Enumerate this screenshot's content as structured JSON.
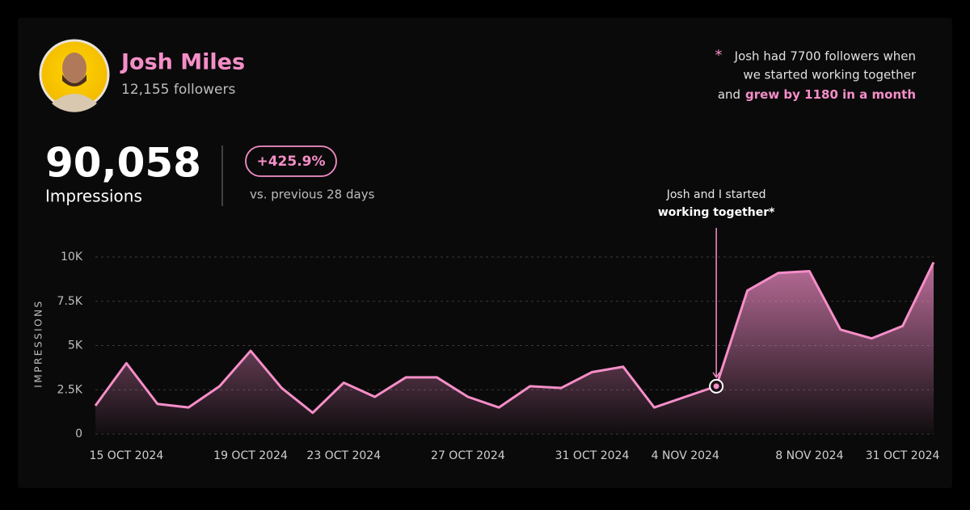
{
  "header": {
    "name": "Josh Miles",
    "followers": "12,155 followers"
  },
  "summary": {
    "total": "90,058",
    "label": "Impressions",
    "change": "+425.9%",
    "comparison": "vs. previous 28 days"
  },
  "note": {
    "marker": "*",
    "line1": "Josh had 7700 followers when",
    "line2": "we started working together",
    "prefix": "and",
    "highlight": "grew by 1180 in a month"
  },
  "chart_data": {
    "type": "area",
    "y_label": "IMPRESSIONS",
    "annotation": [
      "Josh and I started",
      "working together*"
    ],
    "categories": [
      null,
      "15 OCT 2024",
      null,
      null,
      null,
      "19 OCT 2024",
      null,
      null,
      "23 OCT 2024",
      null,
      null,
      null,
      "27 OCT 2024",
      null,
      null,
      null,
      "31 OCT 2024",
      null,
      null,
      "4 NOV 2024",
      null,
      null,
      null,
      "8 NOV 2024",
      null,
      null,
      "31 OCT 2024",
      null
    ],
    "values": [
      1600,
      4000,
      1700,
      1500,
      2700,
      4700,
      2600,
      1200,
      2900,
      2100,
      3200,
      3200,
      2100,
      1500,
      2700,
      2600,
      3500,
      3800,
      1500,
      2100,
      2700,
      8100,
      9100,
      9200,
      5900,
      5400,
      6100,
      9700
    ],
    "color": "#f58ec8",
    "ylim": [
      0,
      10000
    ],
    "yticks": [
      0,
      {
        "value": 2500,
        "label": "2.5K"
      },
      {
        "value": 5000,
        "label": "5K"
      },
      {
        "value": 7500,
        "label": "7.5K"
      },
      {
        "value": 10000,
        "label": "10K"
      }
    ],
    "grid": true
  }
}
